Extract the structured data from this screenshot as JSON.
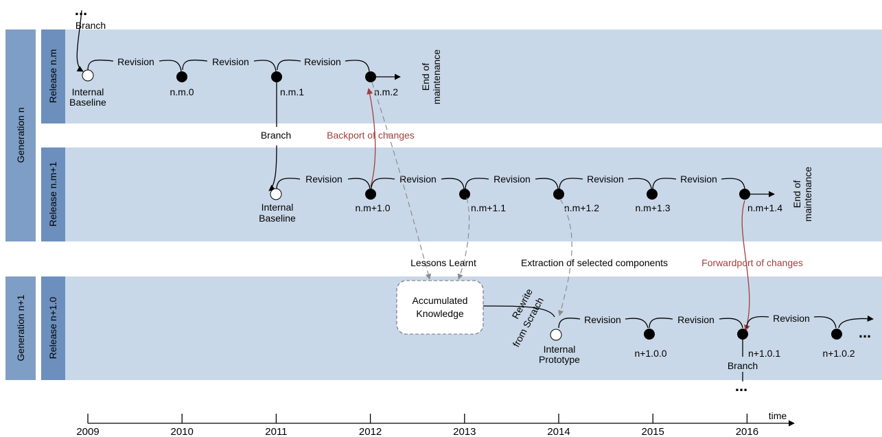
{
  "colors": {
    "band": "#c9d8e8",
    "gen_bar": "#7e9ec5",
    "release_bar": "#6c8fbd",
    "red": "#a0403c",
    "dashed": "#8c8c8c"
  },
  "generations": [
    {
      "label": "Generation n"
    },
    {
      "label": "Generation n+1"
    }
  ],
  "releases": [
    {
      "label": "Release n.m"
    },
    {
      "label": "Release n.m+1"
    },
    {
      "label": "Release n+1.0"
    }
  ],
  "labels": {
    "branch": "Branch",
    "revision": "Revision",
    "internal": "Internal",
    "baseline": "Baseline",
    "prototype": "Prototype",
    "end_of": "End of",
    "maintenance": "maintenance",
    "backport": "Backport of changes",
    "forwardport": "Forwardport of changes",
    "lessons": "Lessons Learnt",
    "extraction": "Extraction of selected components",
    "accumulated": "Accumulated",
    "knowledge": "Knowledge",
    "rewrite": "Rewrite",
    "from_scratch": "from Scratch",
    "ellipsis": "...",
    "time": "time"
  },
  "nodes": {
    "r1": [
      "n.m.0",
      "n.m.1",
      "n.m.2"
    ],
    "r2": [
      "n.m+1.0",
      "n.m+1.1",
      "n.m+1.2",
      "n.m+1.3",
      "n.m+1.4"
    ],
    "r3": [
      "n+1.0.0",
      "n+1.0.1",
      "n+1.0.2"
    ]
  },
  "axis": {
    "years": [
      "2009",
      "2010",
      "2011",
      "2012",
      "2013",
      "2014",
      "2015",
      "2016"
    ]
  }
}
